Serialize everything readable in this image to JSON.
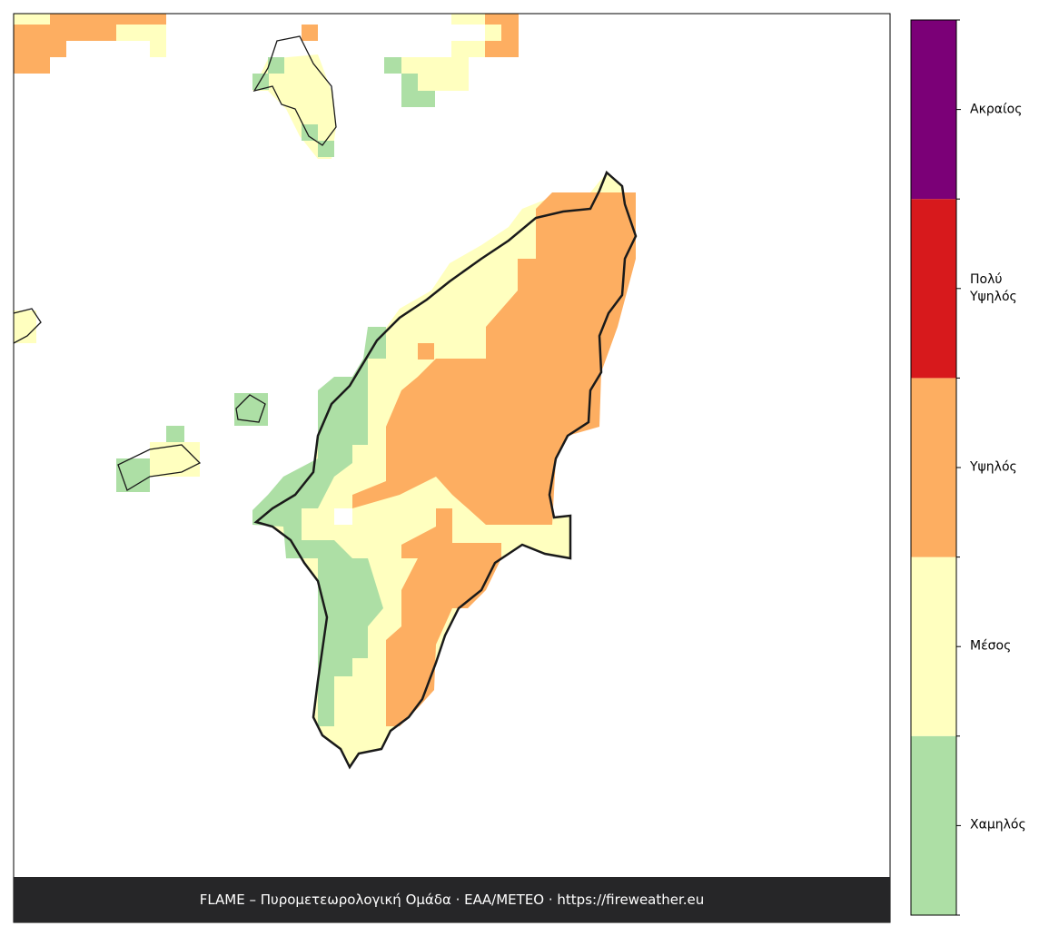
{
  "legend": {
    "items": [
      {
        "label": "Χαμηλός",
        "color": "#addfa5"
      },
      {
        "label": "Μέσος",
        "color": "#ffffbf"
      },
      {
        "label": "Υψηλός",
        "color": "#fdae61"
      },
      {
        "label": "Πολύ\nΥψηλός",
        "color": "#d7191c"
      },
      {
        "label": "Ακραίος",
        "color": "#7b0077"
      }
    ]
  },
  "footer": {
    "text": "FLAME – Πυρομετεωρολογική Ομάδα · ΕΑΑ/METEO · https://fireweather.eu"
  }
}
